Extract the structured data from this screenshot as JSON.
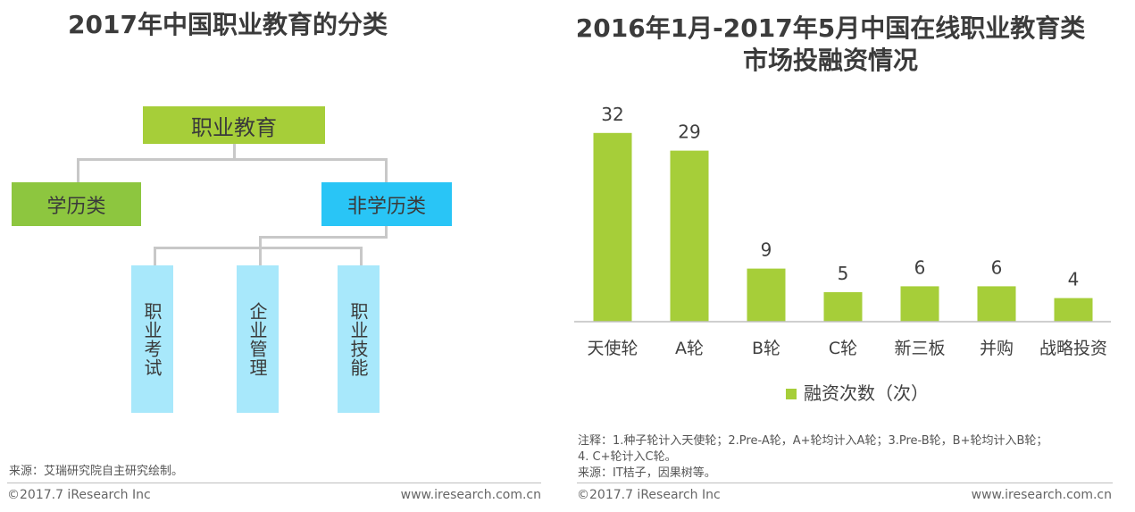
{
  "left": {
    "title": "2017年中国职业教育的分类",
    "root": "职业教育",
    "level1": [
      "学历类",
      "非学历类"
    ],
    "level2": [
      "职业考试",
      "企业管理",
      "职业技能"
    ],
    "source": "来源：艾瑞研究院自主研究绘制。",
    "copyright": "©2017.7 iResearch Inc",
    "website": "www.iresearch.com.cn"
  },
  "right": {
    "title_line1": "2016年1月-2017年5月中国在线职业教育类",
    "title_line2": "市场投融资情况",
    "note_line1": "注释：1.种子轮计入天使轮；2.Pre-A轮，A+轮均计入A轮；3.Pre-B轮，B+轮均计入B轮；",
    "note_line2": "4. C+轮计入C轮。",
    "source": "来源：IT桔子，因果树等。",
    "copyright": "©2017.7 iResearch Inc",
    "website": "www.iresearch.com.cn"
  },
  "colors": {
    "green_light": "#a6ce39",
    "green_mid": "#8dc63f",
    "cyan": "#29c5f6",
    "cyan_light": "#a8e8fb",
    "bar": "#a6ce39",
    "connector": "#c8c8c8"
  },
  "chart_data": {
    "type": "bar",
    "title": "2016年1月-2017年5月中国在线职业教育类市场投融资情况",
    "categories": [
      "天使轮",
      "A轮",
      "B轮",
      "C轮",
      "新三板",
      "并购",
      "战略投资"
    ],
    "series": [
      {
        "name": "融资次数（次）",
        "values": [
          32,
          29,
          9,
          5,
          6,
          6,
          4
        ]
      }
    ],
    "ylim": [
      0,
      35
    ],
    "grid": false,
    "legend": "bottom-center"
  }
}
